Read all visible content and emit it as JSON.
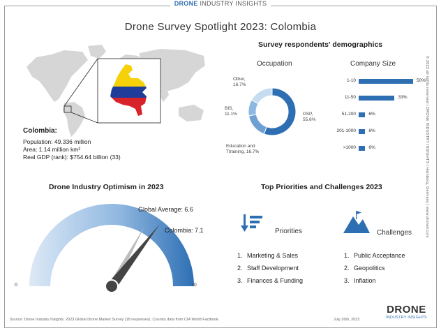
{
  "brand": {
    "bold": "DRONE",
    "rest": "INDUSTRY INSIGHTS"
  },
  "title": "Drone Survey Spotlight 2023: Colombia",
  "colombia": {
    "heading": "Colombia:",
    "population": "Population: 49.336 million",
    "area": "Area: 1.14 million km²",
    "gdp": "Real GDP (rank): $754.64 billion (33)"
  },
  "demographics": {
    "title": "Survey respondents' demographics",
    "occupation_title": "Occupation",
    "company_title": "Company Size"
  },
  "chart_data": [
    {
      "type": "pie",
      "title": "Occupation",
      "donut": true,
      "labels": [
        "DSP",
        "Education and training",
        "BIS",
        "Other"
      ],
      "display_labels": [
        "DSP,\n55.6%",
        "Education and\nTtraining, 16.7%",
        "BIS,\n11.1%",
        "Other,\n16.7%"
      ],
      "values": [
        55.6,
        16.7,
        11.1,
        16.7
      ],
      "colors": [
        "#2e6fb4",
        "#6fa0d4",
        "#8db8e2",
        "#c5dcf1"
      ]
    },
    {
      "type": "bar",
      "orientation": "horizontal",
      "title": "Company Size",
      "categories": [
        "1-10",
        "11-50",
        "51-200",
        "201-1000",
        ">1000"
      ],
      "values": [
        50,
        33,
        6,
        6,
        6
      ],
      "value_labels": [
        "50%",
        "33%",
        "6%",
        "6%",
        "6%"
      ],
      "xlim": [
        0,
        50
      ],
      "color": "#2e6fb4"
    },
    {
      "type": "gauge",
      "title": "Drone Industry Optimism in 2023",
      "range": [
        0,
        10
      ],
      "range_labels": [
        "0",
        "10"
      ],
      "needles": [
        {
          "name": "Global Average",
          "value": 6.6,
          "label": "Global Average: 6.6",
          "color": "#bdbdbd"
        },
        {
          "name": "Colombia",
          "value": 7.1,
          "label": "Colombia: 7.1",
          "color": "#444444"
        }
      ]
    }
  ],
  "priorities": {
    "section_title": "Top Priorities and Challenges 2023",
    "title": "Priorities",
    "items": [
      "Marketing & Sales",
      "Staff Development",
      "Finances & Funding"
    ]
  },
  "challenges": {
    "title": "Challenges",
    "items": [
      "Public Acceptance",
      "Geopolitics",
      "Inflation"
    ]
  },
  "list_numbers": [
    "1.",
    "2.",
    "3."
  ],
  "footer": {
    "source": "Source: Drone Industry Insights. 2023 Global Drone Market Survey (18 responses). Country data from CIA World Factbook.",
    "date": "July 26th, 2023",
    "logo_line1": "DRONE",
    "logo_line2": "INDUSTRY INSIGHTS"
  },
  "side_text": "© 2023 all rights reserved  |  DRONE INDUSTRY INSIGHTS  |  Hamburg, Germany  |  www.droneii.com",
  "colors": {
    "accent": "#2e6fb4",
    "flag_yellow": "#f6d10a",
    "flag_blue": "#1f3c9a",
    "flag_red": "#d8232a",
    "map": "#d6d6d6"
  }
}
